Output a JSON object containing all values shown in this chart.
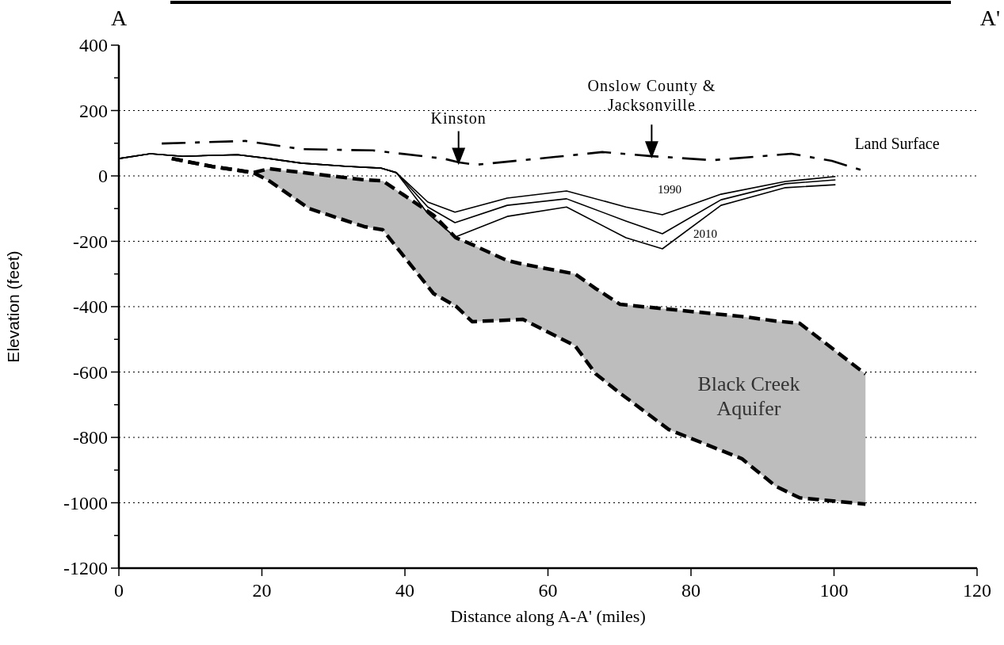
{
  "chart_data": {
    "type": "line",
    "xlabel": "Distance along A-A' (miles)",
    "ylabel": "Elevation (feet)",
    "xlim": [
      0,
      120
    ],
    "xticks": [
      0,
      20,
      40,
      60,
      80,
      100,
      120
    ],
    "ylim": [
      -1200,
      400
    ],
    "yticks": [
      -1200,
      {
        "value": -1100,
        "label": null
      },
      -1000,
      {
        "value": -900,
        "label": null
      },
      -800,
      {
        "value": -700,
        "label": null
      },
      -600,
      {
        "value": -500,
        "label": null
      },
      -400,
      {
        "value": -300,
        "label": null
      },
      -200,
      {
        "value": -100,
        "label": null
      },
      0,
      {
        "value": 100,
        "label": null
      },
      200,
      {
        "value": 300,
        "label": null
      },
      400
    ],
    "grid": "y",
    "series": [
      {
        "color": "#000000",
        "line_style": "dashed",
        "x": [
          7.4,
          13,
          18.8,
          21,
          26.6,
          34.3,
          36.9,
          44,
          47.1,
          49.4,
          54.3,
          56.5,
          63.8,
          66.7,
          70.1,
          76.9,
          87.1,
          91.9,
          95.2,
          104.4
        ],
        "values": [
          53,
          29,
          10,
          22,
          8,
          -12,
          -15,
          -120,
          -189,
          -210,
          -259,
          -270,
          -300,
          -345,
          -393,
          -408,
          -430,
          -444,
          -451,
          -606
        ],
        "upper": [
          53,
          29,
          10,
          22,
          8,
          -12,
          -15,
          -120,
          -189,
          -210,
          -259,
          -270,
          -300,
          -345,
          -393,
          -408,
          -430,
          -444,
          -451,
          -606
        ],
        "lower": [
          53,
          29,
          10,
          -15,
          -100,
          -155,
          -165,
          -360,
          -398,
          -446,
          -441,
          -439,
          -520,
          -606,
          -665,
          -776,
          -865,
          -950,
          -985,
          -1004
        ]
      },
      {
        "color": "#000000",
        "line_style": "dashed",
        "x": [
          7.4,
          13,
          18.8,
          21,
          26.6,
          34.3,
          36.9,
          44,
          47.1,
          49.4,
          54.3,
          56.5,
          63.8,
          66.7,
          70.1,
          76.9,
          87.1,
          91.9,
          95.2,
          104.4
        ],
        "values": [
          53,
          29,
          10,
          -15,
          -100,
          -155,
          -165,
          -360,
          -398,
          -446,
          -441,
          -439,
          -520,
          -606,
          -665,
          -776,
          -865,
          -950,
          -985,
          -1004
        ]
      },
      {
        "color": "#000000",
        "line_style": "dashdot",
        "x": [
          6,
          17.7,
          25.5,
          35.5,
          45.4,
          47.6,
          49.9,
          61,
          67.6,
          74.2,
          83,
          94,
          99.7,
          104.7
        ],
        "values": [
          99,
          107,
          82,
          78,
          53,
          41,
          34,
          58,
          73,
          61,
          48,
          68,
          46,
          12
        ]
      },
      {
        "color": "#000000",
        "line_style": "solid",
        "x": [
          0,
          4.4,
          8.9,
          16.6,
          21,
          25.5,
          32,
          36.6,
          38.8,
          43.2,
          47,
          54.3,
          62.6,
          70.9,
          76,
          84.2,
          93.2,
          100.2
        ],
        "values": [
          53,
          68,
          60,
          65,
          53,
          39,
          29,
          24,
          10,
          -80,
          -111,
          -68,
          -46,
          -95,
          -119,
          -56,
          -17,
          -2
        ]
      },
      {
        "color": "#000000",
        "line_style": "solid",
        "x": [
          0,
          4.4,
          8.9,
          16.6,
          21,
          25.5,
          32,
          36.6,
          38.8,
          43.2,
          47,
          54.3,
          62.6,
          70.9,
          76,
          84.2,
          93.2,
          100.2
        ],
        "values": [
          53,
          68,
          60,
          65,
          53,
          39,
          29,
          24,
          10,
          -95,
          -143,
          -90,
          -70,
          -138,
          -177,
          -73,
          -24,
          -12
        ]
      },
      {
        "color": "#000000",
        "line_style": "solid",
        "x": [
          0,
          4.4,
          8.9,
          16.6,
          21,
          25.5,
          32,
          36.6,
          38.8,
          43.2,
          47,
          54.3,
          62.6,
          70.9,
          76,
          84.2,
          93.2,
          100.2
        ],
        "values": [
          53,
          68,
          60,
          65,
          53,
          39,
          29,
          24,
          10,
          -115,
          -187,
          -124,
          -95,
          -189,
          -223,
          -90,
          -36,
          -27
        ]
      }
    ],
    "annotations": [
      "A",
      "A'",
      {
        "text": "Kinston",
        "x": 47.5,
        "y": 40
      },
      {
        "text": "Onslow County &\nJacksonville",
        "x": 74.5,
        "y": 60
      },
      "Land Surface",
      "1990",
      "2010",
      "Black Creek\nAquifer"
    ]
  }
}
